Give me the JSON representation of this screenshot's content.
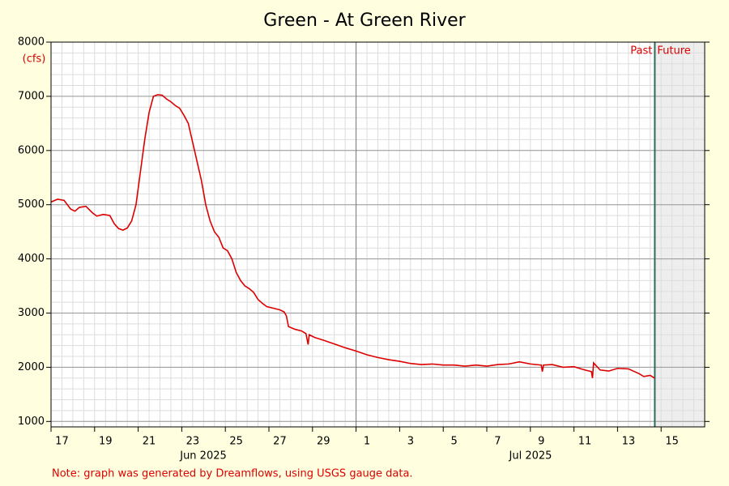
{
  "chart_data": {
    "type": "line",
    "title": "Green - At Green River",
    "y_label": "(cfs)",
    "note": "Note: graph was generated by Dreamflows, using USGS gauge data.",
    "month_labels": [
      "Jun 2025",
      "Jul 2025"
    ],
    "past_label": "Past",
    "future_label": "Future",
    "past_future_x": 27.71,
    "month_boundaries": [
      14
    ],
    "color": "#dd0000",
    "xlim": [
      0,
      30
    ],
    "ylim": [
      900,
      8000
    ],
    "yticks": [
      1000,
      2000,
      3000,
      4000,
      5000,
      6000,
      7000,
      8000
    ],
    "xticks": [
      {
        "value": 0.5,
        "label": "17"
      },
      {
        "value": 2.5,
        "label": "19"
      },
      {
        "value": 4.5,
        "label": "21"
      },
      {
        "value": 6.5,
        "label": "23"
      },
      {
        "value": 8.5,
        "label": "25"
      },
      {
        "value": 10.5,
        "label": "27"
      },
      {
        "value": 12.5,
        "label": "29"
      },
      {
        "value": 14.5,
        "label": "1"
      },
      {
        "value": 16.5,
        "label": "3"
      },
      {
        "value": 18.5,
        "label": "5"
      },
      {
        "value": 20.5,
        "label": "7"
      },
      {
        "value": 22.5,
        "label": "9"
      },
      {
        "value": 24.5,
        "label": "11"
      },
      {
        "value": 26.5,
        "label": "13"
      },
      {
        "value": 28.5,
        "label": "15"
      }
    ],
    "grid": true,
    "x": [
      0,
      0.3,
      0.6,
      0.9,
      1.1,
      1.3,
      1.6,
      1.9,
      2.1,
      2.4,
      2.7,
      2.9,
      3.1,
      3.3,
      3.5,
      3.7,
      3.9,
      4.1,
      4.3,
      4.5,
      4.7,
      4.9,
      5.1,
      5.3,
      5.5,
      5.7,
      5.9,
      6.1,
      6.3,
      6.5,
      6.7,
      6.9,
      7.1,
      7.3,
      7.5,
      7.7,
      7.9,
      8.1,
      8.3,
      8.5,
      8.7,
      8.9,
      9.1,
      9.3,
      9.5,
      9.7,
      9.9,
      10.2,
      10.5,
      10.7,
      10.8,
      10.9,
      11.2,
      11.5,
      11.7,
      11.8,
      11.85,
      12.1,
      12.5,
      13,
      13.5,
      14,
      14.5,
      15,
      15.5,
      16,
      16.5,
      17,
      17.5,
      18,
      18.5,
      19,
      19.5,
      20,
      20.5,
      21,
      21.5,
      22,
      22.5,
      22.55,
      22.6,
      23,
      23.5,
      24,
      24.5,
      24.8,
      24.85,
      24.9,
      25.2,
      25.6,
      26,
      26.5,
      27,
      27.2,
      27.5,
      27.7
    ],
    "values": [
      5050,
      5100,
      5080,
      4920,
      4880,
      4950,
      4970,
      4850,
      4790,
      4820,
      4800,
      4650,
      4560,
      4530,
      4570,
      4700,
      5000,
      5600,
      6200,
      6700,
      7000,
      7030,
      7020,
      6950,
      6900,
      6830,
      6780,
      6650,
      6500,
      6150,
      5800,
      5450,
      5000,
      4700,
      4500,
      4400,
      4200,
      4150,
      4000,
      3750,
      3600,
      3500,
      3450,
      3380,
      3250,
      3180,
      3120,
      3090,
      3060,
      3020,
      2950,
      2750,
      2700,
      2670,
      2620,
      2420,
      2600,
      2550,
      2500,
      2430,
      2360,
      2300,
      2230,
      2180,
      2140,
      2110,
      2070,
      2050,
      2060,
      2040,
      2040,
      2020,
      2040,
      2020,
      2050,
      2060,
      2100,
      2060,
      2040,
      1920,
      2040,
      2050,
      2000,
      2010,
      1950,
      1920,
      1800,
      2080,
      1950,
      1930,
      1980,
      1970,
      1880,
      1830,
      1850,
      1800
    ]
  }
}
